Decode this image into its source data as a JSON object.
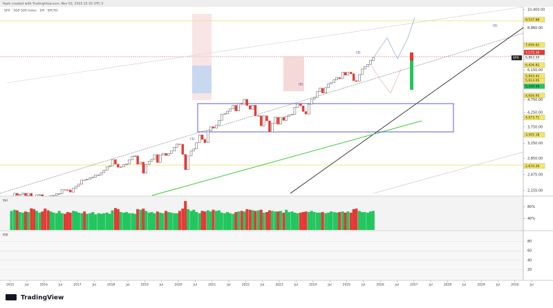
{
  "header": {
    "credit": "fxjoh created with TradingView.com, Nov 02, 2025 22:32 UTC-3",
    "legend": "SPX · S&P 500 Index · 1M · SPCFD"
  },
  "chart_data": {
    "type": "candlestick",
    "log_scale": true,
    "x": [
      "2015-01",
      "2015-02",
      "2015-03",
      "2015-04",
      "2015-05",
      "2015-06",
      "2015-07",
      "2015-08",
      "2015-09",
      "2015-10",
      "2015-11",
      "2015-12",
      "2016-01",
      "2016-02",
      "2016-03",
      "2016-04",
      "2016-05",
      "2016-06",
      "2016-07",
      "2016-08",
      "2016-09",
      "2016-10",
      "2016-11",
      "2016-12",
      "2017-01",
      "2017-02",
      "2017-03",
      "2017-04",
      "2017-05",
      "2017-06",
      "2017-07",
      "2017-08",
      "2017-09",
      "2017-10",
      "2017-11",
      "2017-12",
      "2018-01",
      "2018-02",
      "2018-03",
      "2018-04",
      "2018-05",
      "2018-06",
      "2018-07",
      "2018-08",
      "2018-09",
      "2018-10",
      "2018-11",
      "2018-12",
      "2019-01",
      "2019-02",
      "2019-03",
      "2019-04",
      "2019-05",
      "2019-06",
      "2019-07",
      "2019-08",
      "2019-09",
      "2019-10",
      "2019-11",
      "2019-12",
      "2020-01",
      "2020-02",
      "2020-03",
      "2020-04",
      "2020-05",
      "2020-06",
      "2020-07",
      "2020-08",
      "2020-09",
      "2020-10",
      "2020-11",
      "2020-12",
      "2021-01",
      "2021-02",
      "2021-03",
      "2021-04",
      "2021-05",
      "2021-06",
      "2021-07",
      "2021-08",
      "2021-09",
      "2021-10",
      "2021-11",
      "2021-12",
      "2022-01",
      "2022-02",
      "2022-03",
      "2022-04",
      "2022-05",
      "2022-06",
      "2022-07",
      "2022-08",
      "2022-09",
      "2022-10",
      "2022-11",
      "2022-12",
      "2023-01",
      "2023-02",
      "2023-03",
      "2023-04",
      "2023-05",
      "2023-06",
      "2023-07",
      "2023-08",
      "2023-09",
      "2023-10",
      "2023-11",
      "2023-12",
      "2024-01",
      "2024-02",
      "2024-03",
      "2024-04",
      "2024-05",
      "2024-06",
      "2024-07",
      "2024-08",
      "2024-09",
      "2024-10",
      "2024-11",
      "2024-12",
      "2025-01",
      "2025-02",
      "2025-03",
      "2025-04",
      "2025-05",
      "2025-06",
      "2025-07",
      "2025-08",
      "2025-09",
      "2025-10"
    ],
    "x_numeric": [
      2015.04,
      2015.13,
      2015.21,
      2015.29,
      2015.38,
      2015.46,
      2015.54,
      2015.63,
      2015.71,
      2015.79,
      2015.88,
      2015.96,
      2016.04,
      2016.13,
      2016.21,
      2016.29,
      2016.38,
      2016.46,
      2016.54,
      2016.63,
      2016.71,
      2016.79,
      2016.88,
      2016.96,
      2017.04,
      2017.13,
      2017.21,
      2017.29,
      2017.38,
      2017.46,
      2017.54,
      2017.63,
      2017.71,
      2017.79,
      2017.88,
      2017.96,
      2018.04,
      2018.13,
      2018.21,
      2018.29,
      2018.38,
      2018.46,
      2018.54,
      2018.63,
      2018.71,
      2018.79,
      2018.88,
      2018.96,
      2019.04,
      2019.13,
      2019.21,
      2019.29,
      2019.38,
      2019.46,
      2019.54,
      2019.63,
      2019.71,
      2019.79,
      2019.88,
      2019.96,
      2020.04,
      2020.13,
      2020.21,
      2020.29,
      2020.38,
      2020.46,
      2020.54,
      2020.63,
      2020.71,
      2020.79,
      2020.88,
      2020.96,
      2021.04,
      2021.13,
      2021.21,
      2021.29,
      2021.38,
      2021.46,
      2021.54,
      2021.63,
      2021.71,
      2021.79,
      2021.88,
      2021.96,
      2022.04,
      2022.13,
      2022.21,
      2022.29,
      2022.38,
      2022.46,
      2022.54,
      2022.63,
      2022.71,
      2022.79,
      2022.88,
      2022.96,
      2023.04,
      2023.13,
      2023.21,
      2023.29,
      2023.38,
      2023.46,
      2023.54,
      2023.63,
      2023.71,
      2023.79,
      2023.88,
      2023.96,
      2024.04,
      2024.13,
      2024.21,
      2024.29,
      2024.38,
      2024.46,
      2024.54,
      2024.63,
      2024.71,
      2024.79,
      2024.88,
      2024.96,
      2025.04,
      2025.13,
      2025.21,
      2025.29,
      2025.38,
      2025.46,
      2025.54,
      2025.63,
      2025.71,
      2025.79
    ],
    "values": [
      1995,
      2105,
      2068,
      2086,
      2107,
      2063,
      2104,
      1972,
      1920,
      2079,
      2080,
      2044,
      1940,
      1932,
      2060,
      2065,
      2097,
      2099,
      2174,
      2171,
      2168,
      2126,
      2199,
      2239,
      2279,
      2364,
      2363,
      2384,
      2412,
      2423,
      2470,
      2472,
      2519,
      2575,
      2648,
      2674,
      2824,
      2714,
      2641,
      2648,
      2705,
      2718,
      2816,
      2902,
      2914,
      2712,
      2760,
      2507,
      2704,
      2784,
      2834,
      2946,
      2752,
      2942,
      2980,
      2926,
      2977,
      3038,
      3141,
      3231,
      3226,
      2954,
      2585,
      2912,
      3044,
      3100,
      3271,
      3500,
      3363,
      3270,
      3622,
      3756,
      3714,
      3811,
      3973,
      4181,
      4204,
      4298,
      4395,
      4523,
      4308,
      4605,
      4567,
      4766,
      4516,
      4374,
      4530,
      4132,
      4132,
      3785,
      4130,
      3955,
      3586,
      3872,
      4080,
      3840,
      4077,
      3970,
      4109,
      4169,
      4180,
      4450,
      4589,
      4508,
      4288,
      4194,
      4568,
      4770,
      4846,
      5096,
      5254,
      5036,
      5278,
      5460,
      5522,
      5648,
      5762,
      5705,
      6032,
      5882,
      6041,
      5955,
      5612,
      5569,
      5912,
      6205,
      6339,
      6460,
      6688,
      6840
    ],
    "volume": [
      66,
      70,
      68,
      62,
      60,
      64,
      62,
      75,
      72,
      66,
      60,
      64,
      74,
      68,
      64,
      60,
      58,
      66,
      58,
      56,
      62,
      60,
      66,
      64,
      60,
      58,
      64,
      56,
      58,
      62,
      54,
      58,
      56,
      58,
      60,
      56,
      68,
      76,
      72,
      62,
      60,
      62,
      58,
      58,
      56,
      72,
      70,
      74,
      66,
      60,
      62,
      58,
      64,
      60,
      58,
      66,
      62,
      60,
      58,
      58,
      66,
      74,
      100,
      72,
      66,
      70,
      62,
      58,
      66,
      64,
      68,
      64,
      70,
      66,
      68,
      60,
      58,
      62,
      58,
      56,
      62,
      64,
      66,
      64,
      72,
      70,
      68,
      66,
      68,
      70,
      60,
      62,
      68,
      66,
      64,
      64,
      66,
      60,
      70,
      62,
      64,
      60,
      58,
      60,
      62,
      64,
      62,
      66,
      62,
      60,
      60,
      62,
      58,
      60,
      64,
      62,
      60,
      62,
      64,
      60,
      64,
      60,
      72,
      74,
      66,
      62,
      62,
      60,
      64,
      66
    ],
    "up_color": "#ffffff",
    "down_color": "#e53935",
    "vol_up_color": "#22c55e",
    "vol_down_color": "#e53935",
    "xlim": [
      2014.7,
      2030.6
    ],
    "xticks": [
      2015,
      {
        "value": 2015.5,
        "label": "Jul"
      },
      2016,
      {
        "value": 2016.5,
        "label": "Jul"
      },
      2017,
      {
        "value": 2017.5,
        "label": "Jul"
      },
      2018,
      {
        "value": 2018.5,
        "label": "Jul"
      },
      2019,
      {
        "value": 2019.5,
        "label": "Jul"
      },
      2020,
      {
        "value": 2020.5,
        "label": "Jul"
      },
      2021,
      {
        "value": 2021.5,
        "label": "Jul"
      },
      2022,
      {
        "value": 2022.5,
        "label": "Jul"
      },
      2023,
      {
        "value": 2023.5,
        "label": "Jul"
      },
      2024,
      {
        "value": 2024.5,
        "label": "Jul"
      },
      2025,
      {
        "value": 2025.5,
        "label": "Jul"
      },
      2026,
      {
        "value": 2026.5,
        "label": "Jul"
      },
      2027,
      {
        "value": 2027.5,
        "label": "Jul"
      },
      2028,
      {
        "value": 2028.5,
        "label": "Jul"
      },
      2029,
      {
        "value": 2029.5,
        "label": "Jul"
      },
      2030,
      {
        "value": 2030.5,
        "label": "Jul"
      }
    ],
    "ylim": [
      2155,
      10400
    ],
    "yticks": [
      {
        "value": 2155,
        "label": "2,155.00"
      },
      {
        "value": 2475,
        "label": "2,475.00"
      },
      {
        "value": 2850,
        "label": "2,850.00"
      },
      {
        "value": 3250,
        "label": "3,250.00"
      },
      {
        "value": 3750,
        "label": "3,750.00"
      },
      {
        "value": 4250,
        "label": "4,250.00"
      },
      {
        "value": 4750,
        "label": "4,750.00"
      },
      {
        "value": 5350,
        "label": "5,350.00"
      },
      {
        "value": 6150,
        "label": "6,150.00"
      },
      {
        "value": 8860,
        "label": "8,860.00"
      },
      {
        "value": 10400,
        "label": "10,400.00"
      }
    ],
    "price_labels": [
      {
        "value": 9537.88,
        "label": "9,537.88",
        "color": "#f5e663"
      },
      {
        "value": 7656.62,
        "label": "7,656.62",
        "color": "#f5e663"
      },
      {
        "value": 7175.36,
        "label": "7,175.36",
        "color": "#e53935"
      },
      {
        "value": 6863.59,
        "label": "6,863.59",
        "color": "#ffffff"
      },
      {
        "value": 6426.82,
        "label": "6,426.82",
        "color": "#f5e663"
      },
      {
        "value": 5843.42,
        "label": "5,843.42",
        "color": "#f5e663"
      },
      {
        "value": 5614.05,
        "label": "5,614.05",
        "color": "#f5e663"
      },
      {
        "value": 5340.46,
        "label": "5,340.46",
        "color": "#22c55e"
      },
      {
        "value": 4926.95,
        "label": "4,926.95",
        "color": "#f5e663"
      },
      {
        "value": 4073.71,
        "label": "4,073.71",
        "color": "#f5e663"
      },
      {
        "value": 3505.18,
        "label": "3,505.18",
        "color": "#f5e663"
      },
      {
        "value": 2670.26,
        "label": "2,670.26",
        "color": "#f5e663"
      }
    ],
    "symbol": "SPX",
    "volume_label": "Vol",
    "volume_ylim": [
      0,
      110
    ],
    "volume_yticks": [
      {
        "value": 40,
        "label": "40%"
      },
      {
        "value": 80,
        "label": "80%"
      }
    ],
    "rsi_label": "RSI",
    "rsi_yticks": [
      20,
      40,
      60,
      80
    ],
    "rsi_ylim": [
      0,
      100
    ],
    "annotations": [
      "(1)",
      "(3)",
      "(5)",
      "(5)"
    ]
  },
  "footer": {
    "logo": "TradingView"
  }
}
